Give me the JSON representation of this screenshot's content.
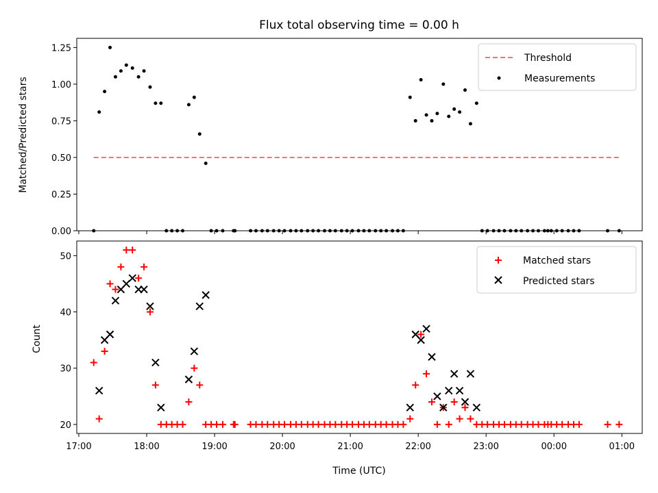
{
  "chart_data": [
    {
      "type": "scatter",
      "title": "Flux total observing time = 0.00 h",
      "xlabel": "",
      "ylabel": "Matched/Predicted stars",
      "ylim": [
        0,
        1.3125
      ],
      "yticks": [
        "0.00",
        "0.25",
        "0.50",
        "0.75",
        "1.00",
        "1.25"
      ],
      "ytick_values": [
        0,
        0.25,
        0.5,
        0.75,
        1.0,
        1.25
      ],
      "xlim_hours": [
        16.97,
        25.3
      ],
      "legend_position": "top-right",
      "threshold": {
        "name": "Threshold",
        "value": 0.5,
        "x_start": 17.22,
        "x_end": 24.98,
        "color": "#ff7070"
      },
      "series": [
        {
          "name": "Measurements",
          "color": "#000000",
          "points": [
            [
              17.22,
              0
            ],
            [
              17.3,
              0.81
            ],
            [
              17.38,
              0.95
            ],
            [
              17.46,
              1.25
            ],
            [
              17.54,
              1.05
            ],
            [
              17.62,
              1.09
            ],
            [
              17.7,
              1.13
            ],
            [
              17.79,
              1.11
            ],
            [
              17.88,
              1.05
            ],
            [
              17.96,
              1.09
            ],
            [
              18.05,
              0.98
            ],
            [
              18.13,
              0.87
            ],
            [
              18.21,
              0.87
            ],
            [
              18.29,
              0
            ],
            [
              18.37,
              0
            ],
            [
              18.45,
              0
            ],
            [
              18.53,
              0
            ],
            [
              18.62,
              0.86
            ],
            [
              18.7,
              0.91
            ],
            [
              18.78,
              0.66
            ],
            [
              18.87,
              0.46
            ],
            [
              18.95,
              0
            ],
            [
              19.03,
              0
            ],
            [
              19.12,
              0
            ],
            [
              19.28,
              0
            ],
            [
              19.3,
              0
            ],
            [
              19.53,
              0
            ],
            [
              19.61,
              0
            ],
            [
              19.7,
              0
            ],
            [
              19.78,
              0
            ],
            [
              19.87,
              0
            ],
            [
              19.95,
              0
            ],
            [
              20.03,
              0
            ],
            [
              20.12,
              0
            ],
            [
              20.2,
              0
            ],
            [
              20.28,
              0
            ],
            [
              20.37,
              0
            ],
            [
              20.45,
              0
            ],
            [
              20.53,
              0
            ],
            [
              20.62,
              0
            ],
            [
              20.7,
              0
            ],
            [
              20.78,
              0
            ],
            [
              20.87,
              0
            ],
            [
              20.95,
              0
            ],
            [
              21.03,
              0
            ],
            [
              21.12,
              0
            ],
            [
              21.2,
              0
            ],
            [
              21.28,
              0
            ],
            [
              21.37,
              0
            ],
            [
              21.45,
              0
            ],
            [
              21.53,
              0
            ],
            [
              21.62,
              0
            ],
            [
              21.7,
              0
            ],
            [
              21.78,
              0
            ],
            [
              21.88,
              0.91
            ],
            [
              21.96,
              0.75
            ],
            [
              22.04,
              1.03
            ],
            [
              22.12,
              0.79
            ],
            [
              22.2,
              0.75
            ],
            [
              22.28,
              0.8
            ],
            [
              22.37,
              1.0
            ],
            [
              22.45,
              0.78
            ],
            [
              22.53,
              0.83
            ],
            [
              22.61,
              0.81
            ],
            [
              22.69,
              0.96
            ],
            [
              22.77,
              0.73
            ],
            [
              22.86,
              0.87
            ],
            [
              22.94,
              0
            ],
            [
              23.02,
              0
            ],
            [
              23.11,
              0
            ],
            [
              23.19,
              0
            ],
            [
              23.27,
              0
            ],
            [
              23.36,
              0
            ],
            [
              23.44,
              0
            ],
            [
              23.52,
              0
            ],
            [
              23.61,
              0
            ],
            [
              23.69,
              0
            ],
            [
              23.77,
              0
            ],
            [
              23.86,
              0
            ],
            [
              23.91,
              0
            ],
            [
              23.96,
              0
            ],
            [
              24.04,
              0
            ],
            [
              24.12,
              0
            ],
            [
              24.21,
              0
            ],
            [
              24.29,
              0
            ],
            [
              24.37,
              0
            ],
            [
              24.79,
              0
            ],
            [
              24.96,
              0
            ]
          ]
        }
      ]
    },
    {
      "type": "scatter",
      "title": "",
      "xlabel": "Time (UTC)",
      "ylabel": "Count",
      "ylim": [
        18.4,
        52.6
      ],
      "yticks": [
        "20",
        "30",
        "40",
        "50"
      ],
      "ytick_values": [
        20,
        30,
        40,
        50
      ],
      "xlim_hours": [
        16.97,
        25.3
      ],
      "xticks": [
        "17:00",
        "18:00",
        "19:00",
        "20:00",
        "21:00",
        "22:00",
        "23:00",
        "00:00",
        "01:00"
      ],
      "xtick_values": [
        17,
        18,
        19,
        20,
        21,
        22,
        23,
        24,
        25
      ],
      "legend_position": "top-right",
      "series": [
        {
          "name": "Matched stars",
          "color": "#ff0000",
          "marker": "plus",
          "points": [
            [
              17.22,
              31
            ],
            [
              17.3,
              21
            ],
            [
              17.38,
              33
            ],
            [
              17.46,
              45
            ],
            [
              17.54,
              44
            ],
            [
              17.62,
              48
            ],
            [
              17.7,
              51
            ],
            [
              17.79,
              51
            ],
            [
              17.88,
              46
            ],
            [
              17.96,
              48
            ],
            [
              18.05,
              40
            ],
            [
              18.13,
              27
            ],
            [
              18.21,
              20
            ],
            [
              18.29,
              20
            ],
            [
              18.37,
              20
            ],
            [
              18.45,
              20
            ],
            [
              18.53,
              20
            ],
            [
              18.62,
              24
            ],
            [
              18.7,
              30
            ],
            [
              18.78,
              27
            ],
            [
              18.87,
              20
            ],
            [
              18.95,
              20
            ],
            [
              19.03,
              20
            ],
            [
              19.12,
              20
            ],
            [
              19.28,
              20
            ],
            [
              19.3,
              20
            ],
            [
              19.53,
              20
            ],
            [
              19.61,
              20
            ],
            [
              19.7,
              20
            ],
            [
              19.78,
              20
            ],
            [
              19.87,
              20
            ],
            [
              19.95,
              20
            ],
            [
              20.03,
              20
            ],
            [
              20.12,
              20
            ],
            [
              20.2,
              20
            ],
            [
              20.28,
              20
            ],
            [
              20.37,
              20
            ],
            [
              20.45,
              20
            ],
            [
              20.53,
              20
            ],
            [
              20.62,
              20
            ],
            [
              20.7,
              20
            ],
            [
              20.78,
              20
            ],
            [
              20.87,
              20
            ],
            [
              20.95,
              20
            ],
            [
              21.03,
              20
            ],
            [
              21.12,
              20
            ],
            [
              21.2,
              20
            ],
            [
              21.28,
              20
            ],
            [
              21.37,
              20
            ],
            [
              21.45,
              20
            ],
            [
              21.53,
              20
            ],
            [
              21.62,
              20
            ],
            [
              21.7,
              20
            ],
            [
              21.78,
              20
            ],
            [
              21.88,
              21
            ],
            [
              21.96,
              27
            ],
            [
              22.04,
              36
            ],
            [
              22.12,
              29
            ],
            [
              22.2,
              24
            ],
            [
              22.28,
              20
            ],
            [
              22.37,
              23
            ],
            [
              22.45,
              20
            ],
            [
              22.53,
              24
            ],
            [
              22.61,
              21
            ],
            [
              22.69,
              23
            ],
            [
              22.77,
              21
            ],
            [
              22.86,
              20
            ],
            [
              22.94,
              20
            ],
            [
              23.02,
              20
            ],
            [
              23.11,
              20
            ],
            [
              23.19,
              20
            ],
            [
              23.27,
              20
            ],
            [
              23.36,
              20
            ],
            [
              23.44,
              20
            ],
            [
              23.52,
              20
            ],
            [
              23.61,
              20
            ],
            [
              23.69,
              20
            ],
            [
              23.77,
              20
            ],
            [
              23.86,
              20
            ],
            [
              23.91,
              20
            ],
            [
              23.96,
              20
            ],
            [
              24.04,
              20
            ],
            [
              24.12,
              20
            ],
            [
              24.21,
              20
            ],
            [
              24.29,
              20
            ],
            [
              24.37,
              20
            ],
            [
              24.79,
              20
            ],
            [
              24.96,
              20
            ]
          ]
        },
        {
          "name": "Predicted stars",
          "color": "#000000",
          "marker": "x",
          "points": [
            [
              17.3,
              26
            ],
            [
              17.38,
              35
            ],
            [
              17.46,
              36
            ],
            [
              17.54,
              42
            ],
            [
              17.62,
              44
            ],
            [
              17.7,
              45
            ],
            [
              17.79,
              46
            ],
            [
              17.88,
              44
            ],
            [
              17.96,
              44
            ],
            [
              18.05,
              41
            ],
            [
              18.13,
              31
            ],
            [
              18.21,
              23
            ],
            [
              18.62,
              28
            ],
            [
              18.7,
              33
            ],
            [
              18.78,
              41
            ],
            [
              18.87,
              43
            ],
            [
              21.88,
              23
            ],
            [
              21.96,
              36
            ],
            [
              22.04,
              35
            ],
            [
              22.12,
              37
            ],
            [
              22.2,
              32
            ],
            [
              22.28,
              25
            ],
            [
              22.37,
              23
            ],
            [
              22.45,
              26
            ],
            [
              22.53,
              29
            ],
            [
              22.61,
              26
            ],
            [
              22.69,
              24
            ],
            [
              22.77,
              29
            ],
            [
              22.86,
              23
            ]
          ]
        }
      ]
    }
  ]
}
